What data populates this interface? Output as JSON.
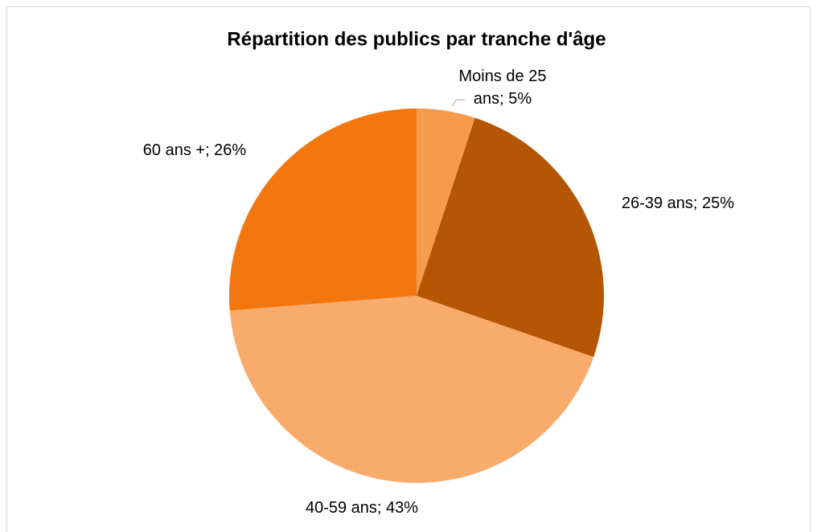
{
  "chart_data": {
    "type": "pie",
    "title": "Répartition des publics par tranche d'âge",
    "values": [
      5,
      25,
      43,
      26
    ],
    "value_labels": [
      "Moins de 25 ans; 5%",
      "26-39 ans; 25%",
      "40-59 ans; 43%",
      "60 ans +; 26%"
    ],
    "colors": [
      "#f69a4b",
      "#b55604",
      "#f9ab6b",
      "#f3760e"
    ]
  }
}
